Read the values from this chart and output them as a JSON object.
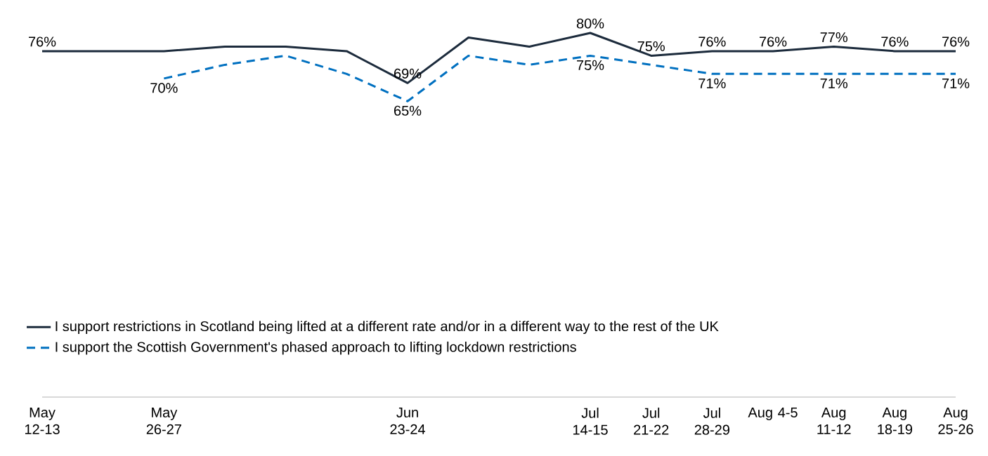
{
  "chart_data": {
    "type": "line",
    "categories": [
      "May 12-13",
      null,
      "May 26-27",
      null,
      null,
      null,
      "Jun 23-24",
      null,
      null,
      "Jul 14-15",
      "Jul 21-22",
      "Jul 28-29",
      "Aug 4-5",
      "Aug 11-12",
      "Aug 18-19",
      "Aug 25-26"
    ],
    "tick_labels": "x",
    "grid": false,
    "legend": "bottom left",
    "marker": "none",
    "series": [
      {
        "name": "I support restrictions in Scotland being lifted at a different rate and/or in a different way to the rest of the UK",
        "color": "#1c2b3c",
        "line_style": "solid",
        "values": [
          76,
          76,
          76,
          77,
          77,
          76,
          69,
          79,
          77,
          80,
          75,
          76,
          76,
          77,
          76,
          76
        ],
        "value_labels": [
          "76%",
          null,
          null,
          null,
          null,
          null,
          "69%",
          null,
          null,
          "80%",
          "75%",
          "76%",
          "76%",
          "77%",
          "76%",
          "76%"
        ]
      },
      {
        "name": "I support the Scottish Government's phased approach to lifting lockdown restrictions",
        "color": "#0070c0",
        "line_style": "dashed",
        "values": [
          null,
          null,
          70,
          73,
          75,
          71,
          65,
          75,
          73,
          75,
          73,
          71,
          71,
          71,
          71,
          71
        ],
        "value_labels": [
          null,
          null,
          "70%",
          null,
          null,
          null,
          "65%",
          null,
          null,
          "75%",
          null,
          "71%",
          null,
          "71%",
          null,
          "71%"
        ]
      }
    ]
  }
}
